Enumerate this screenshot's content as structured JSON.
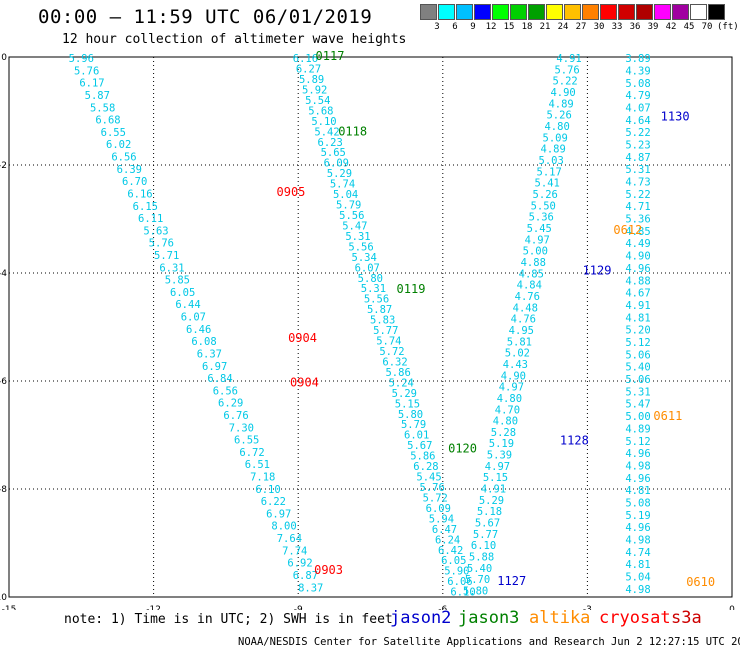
{
  "title": "00:00 – 11:59 UTC 06/01/2019",
  "subtitle": "12 hour collection of altimeter wave heights",
  "color_scale": {
    "colors": [
      "#808080",
      "#00ffff",
      "#00c0ff",
      "#0000ff",
      "#00ff00",
      "#00d000",
      "#00a000",
      "#ffff00",
      "#ffc000",
      "#ff8000",
      "#ff0000",
      "#d00000",
      "#b00000",
      "#ff00ff",
      "#a000a0",
      "#ffffff",
      "#000000"
    ],
    "labels": [
      "3",
      "6",
      "9",
      "12",
      "15",
      "18",
      "21",
      "24",
      "27",
      "30",
      "33",
      "36",
      "39",
      "42",
      "45",
      "70"
    ],
    "unit": "(ft)"
  },
  "note": "note: 1) Time is in UTC; 2) SWH is in feet",
  "legend": [
    {
      "name": "jason2",
      "color": "#0000cc"
    },
    {
      "name": "jason3",
      "color": "#008000"
    },
    {
      "name": "altika",
      "color": "#ff8c00"
    },
    {
      "name": "cryosat",
      "color": "#ff0000"
    },
    {
      "name": "s3a",
      "color": "#cc0000"
    }
  ],
  "credit": "NOAA/NESDIS Center for Satellite Applications and Research   Jun  2 12:27:15 UTC 2019",
  "chart_data": {
    "type": "scatter",
    "title": "00:00 – 11:59 UTC 06/01/2019",
    "subtitle": "12 hour collection of altimeter wave heights",
    "xlim": [
      -15,
      0
    ],
    "ylim": [
      -10,
      0
    ],
    "xticks": [
      "-15",
      "-12",
      "-9",
      "-6",
      "-3",
      "0"
    ],
    "yticks": [
      "0",
      "-2",
      "-4",
      "-6",
      "-8",
      "-10"
    ],
    "grid": true,
    "unit": "ft",
    "series": [
      {
        "name": "cryosat",
        "color": "#00c8e6",
        "start": [
          -13.5,
          -0.02
        ],
        "end": [
          -8.74,
          -9.82
        ],
        "values": [
          "5.96",
          "5.76",
          "6.17",
          "5.87",
          "5.58",
          "6.68",
          "6.55",
          "6.02",
          "6.56",
          "6.39",
          "6.70",
          "6.16",
          "6.15",
          "6.11",
          "5.63",
          "5.76",
          "5.71",
          "6.31",
          "5.85",
          "6.05",
          "6.44",
          "6.07",
          "6.46",
          "6.08",
          "6.37",
          "6.97",
          "6.84",
          "6.56",
          "6.29",
          "6.76",
          "7.30",
          "6.55",
          "6.72",
          "6.51",
          "7.18",
          "6.10",
          "6.22",
          "6.97",
          "8.00",
          "7.64",
          "7.74",
          "6.92",
          "6.87",
          "8.37"
        ]
      },
      {
        "name": "jason3",
        "color": "#00c8e6",
        "start": [
          -8.85,
          -0.02
        ],
        "end": [
          -5.58,
          -9.9
        ],
        "values": [
          "6.16",
          "6.27",
          "5.89",
          "5.92",
          "5.54",
          "5.68",
          "5.10",
          "5.42",
          "6.23",
          "5.65",
          "6.09",
          "5.29",
          "5.74",
          "5.04",
          "5.79",
          "5.56",
          "5.47",
          "5.31",
          "5.56",
          "5.34",
          "6.07",
          "5.80",
          "5.31",
          "5.56",
          "5.87",
          "5.83",
          "5.77",
          "5.74",
          "5.72",
          "6.32",
          "5.86",
          "5.24",
          "5.29",
          "5.15",
          "5.80",
          "5.79",
          "6.01",
          "5.67",
          "5.86",
          "6.28",
          "5.45",
          "5.76",
          "5.72",
          "6.09",
          "5.94",
          "6.47",
          "6.24",
          "6.42",
          "6.05",
          "5.90",
          "6.06",
          "6.10"
        ]
      },
      {
        "name": "jason2",
        "color": "#00c8e6",
        "start": [
          -3.38,
          -0.02
        ],
        "end": [
          -5.32,
          -9.88
        ],
        "values": [
          "4.91",
          "5.76",
          "5.22",
          "4.90",
          "4.89",
          "5.26",
          "4.80",
          "5.09",
          "4.89",
          "5.03",
          "5.17",
          "5.41",
          "5.26",
          "5.50",
          "5.36",
          "5.45",
          "4.97",
          "5.00",
          "4.88",
          "4.85",
          "4.84",
          "4.76",
          "4.48",
          "4.76",
          "4.95",
          "5.81",
          "5.02",
          "4.43",
          "4.90",
          "4.97",
          "4.80",
          "4.70",
          "4.80",
          "5.28",
          "5.19",
          "5.39",
          "4.97",
          "5.15",
          "4.91",
          "5.29",
          "5.18",
          "5.67",
          "5.77",
          "6.10",
          "5.88",
          "5.40",
          "5.70",
          "5.80"
        ]
      },
      {
        "name": "altika",
        "color": "#00c8e6",
        "start": [
          -1.95,
          -0.02
        ],
        "end": [
          -1.95,
          -9.85
        ],
        "values": [
          "3.89",
          "4.39",
          "5.08",
          "4.79",
          "4.07",
          "4.64",
          "5.22",
          "5.23",
          "4.87",
          "5.31",
          "4.73",
          "5.22",
          "4.71",
          "5.36",
          "4.85",
          "4.49",
          "4.90",
          "4.96",
          "4.88",
          "4.67",
          "4.91",
          "4.81",
          "5.20",
          "5.12",
          "5.06",
          "5.40",
          "5.06",
          "5.31",
          "5.47",
          "5.00",
          "4.89",
          "5.12",
          "4.96",
          "4.98",
          "4.96",
          "4.81",
          "5.08",
          "5.19",
          "4.96",
          "4.98",
          "4.74",
          "4.81",
          "5.04",
          "4.98"
        ]
      }
    ],
    "track_labels": [
      {
        "text": "0117",
        "x": -8.64,
        "y": 0.02,
        "color": "#008000"
      },
      {
        "text": "0118",
        "x": -8.17,
        "y": -1.38,
        "color": "#008000"
      },
      {
        "text": "0905",
        "x": -9.45,
        "y": -2.5,
        "color": "#ff0000"
      },
      {
        "text": "0904",
        "x": -9.21,
        "y": -5.2,
        "color": "#ff0000"
      },
      {
        "text": "0904",
        "x": -9.17,
        "y": -6.03,
        "color": "#ff0000"
      },
      {
        "text": "0903",
        "x": -8.67,
        "y": -9.5,
        "color": "#ff0000"
      },
      {
        "text": "0119",
        "x": -6.96,
        "y": -4.3,
        "color": "#008000"
      },
      {
        "text": "0120",
        "x": -5.89,
        "y": -7.25,
        "color": "#008000"
      },
      {
        "text": "1127",
        "x": -4.87,
        "y": -9.7,
        "color": "#0000cc"
      },
      {
        "text": "1128",
        "x": -3.57,
        "y": -7.1,
        "color": "#0000cc"
      },
      {
        "text": "1129",
        "x": -3.1,
        "y": -3.95,
        "color": "#0000cc"
      },
      {
        "text": "1130",
        "x": -1.48,
        "y": -1.1,
        "color": "#0000cc"
      },
      {
        "text": "0612",
        "x": -2.46,
        "y": -3.2,
        "color": "#ff8c00"
      },
      {
        "text": "0611",
        "x": -1.63,
        "y": -6.65,
        "color": "#ff8c00"
      },
      {
        "text": "0610",
        "x": -0.95,
        "y": -9.72,
        "color": "#ff8c00"
      }
    ]
  }
}
